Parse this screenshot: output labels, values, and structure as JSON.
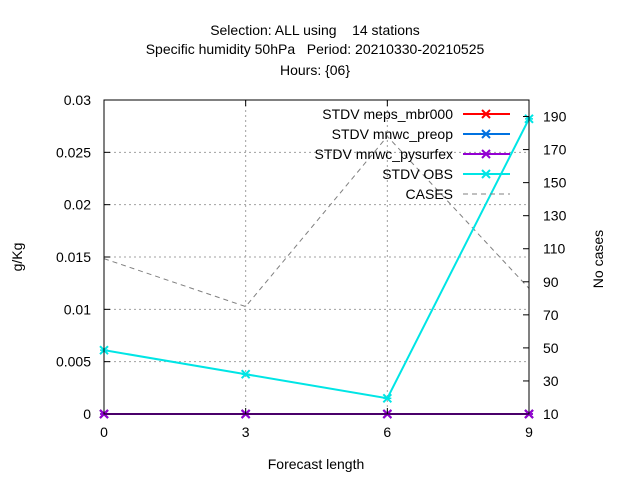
{
  "chart_data": {
    "type": "line",
    "title_lines": [
      "Selection: ALL using    14 stations",
      "Specific humidity 50hPa   Period: 20210330-20210525",
      "Hours: {06}"
    ],
    "xlabel": "Forecast length",
    "ylabel": "g/Kg",
    "y2label": "No cases",
    "x": [
      0,
      3,
      6,
      9
    ],
    "xlim": [
      0,
      9
    ],
    "ylim": [
      0,
      0.03
    ],
    "y2lim": [
      10,
      200
    ],
    "x_ticks": [
      "0",
      "3",
      "6",
      "9"
    ],
    "y_ticks": [
      "0",
      "0.005",
      "0.01",
      "0.015",
      "0.02",
      "0.025",
      "0.03"
    ],
    "y2_ticks": [
      "10",
      "30",
      "50",
      "70",
      "90",
      "110",
      "130",
      "150",
      "170",
      "190"
    ],
    "grid": true,
    "legend_position": "top-right",
    "series": [
      {
        "name": "STDV meps_mbr000",
        "axis": "y",
        "style": "solid",
        "marker": "x",
        "color": "#ff0000",
        "values": [
          0.0,
          0.0,
          0.0,
          0.0
        ]
      },
      {
        "name": "STDV mnwc_preop",
        "axis": "y",
        "style": "solid",
        "marker": "x",
        "color": "#0072e0",
        "values": [
          0.0,
          0.0,
          0.0,
          0.0
        ]
      },
      {
        "name": "STDV mnwc_pysurfex",
        "axis": "y",
        "style": "solid",
        "marker": "x",
        "color": "#9400d3",
        "values": [
          0.0,
          0.0,
          0.0,
          0.0
        ]
      },
      {
        "name": "STDV OBS",
        "axis": "y",
        "style": "solid",
        "marker": "x",
        "color": "#00e5e5",
        "values": [
          0.0061,
          0.0038,
          0.0015,
          0.0282
        ]
      },
      {
        "name": "CASES",
        "axis": "y2",
        "style": "dashed",
        "marker": "",
        "color": "#808080",
        "values": [
          104,
          75,
          178,
          86
        ]
      }
    ]
  }
}
